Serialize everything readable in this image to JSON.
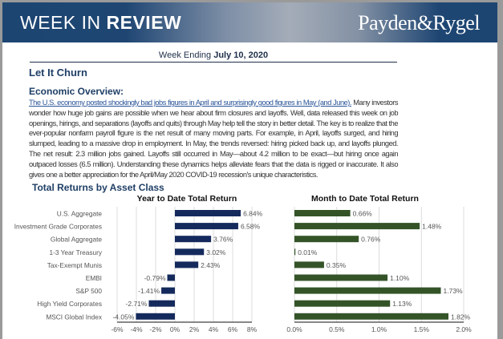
{
  "header": {
    "title_light": "WEEK IN ",
    "title_bold": "REVIEW",
    "logo": "Payden&Rygel"
  },
  "week": {
    "label": "Week Ending ",
    "date": "July 10, 2020"
  },
  "headline": "Let It Churn",
  "overview": {
    "title": "Economic Overview:",
    "link": "The U.S. economy posted shockingly bad jobs figures in April and surprisingly good figures in May (and June).",
    "text": " Many investors wonder how huge job gains are possible when we hear about firm closures and layoffs. Well, data released this week on job openings, hirings, and separations (layoffs and quits) through May help tell the story in better detail. The key is to realize that the ever-popular nonfarm payroll figure is the net result of many moving parts. For example, in April, layoffs surged, and hiring slumped, leading to a massive drop in employment. In May, the trends reversed:  hiring picked back up, and layoffs plunged. The net result: 2.3 million jobs gained. Layoffs still occurred in May—about 4.2 million to be exact—but hiring once again outpaced losses (6.5 million). Understanding these dynamics helps alleviate fears that the data is rigged or inaccurate. It also gives one a better appreciation for the April/May 2020 COVID-19 recession's unique characteristics."
  },
  "section_title": "Total Returns by Asset Class",
  "chart_data": [
    {
      "type": "bar",
      "orientation": "horizontal",
      "title": "Year to Date Total Return",
      "categories": [
        "U.S. Aggregate",
        "Investment Grade Corporates",
        "Global Aggregate",
        "1-3 Year Treasury",
        "Tax-Exempt Munis",
        "EMBI",
        "S&P 500",
        "High Yield Corporates",
        "MSCI Global Index"
      ],
      "values": [
        6.84,
        6.58,
        3.76,
        3.02,
        2.43,
        -0.79,
        -1.41,
        -2.71,
        -4.05
      ],
      "labels": [
        "6.84%",
        "6.58%",
        "3.76%",
        "3.02%",
        "2.43%",
        "-0.79%",
        "-1.41%",
        "-2.71%",
        "-4.05%"
      ],
      "xlim": [
        -6,
        8
      ],
      "ticks": [
        -6,
        -4,
        -2,
        0,
        2,
        4,
        6,
        8
      ],
      "tick_labels": [
        "-6%",
        "-4%",
        "-2%",
        "0%",
        "2%",
        "4%",
        "6%",
        "8%"
      ],
      "color": "#152a5c",
      "grid": true
    },
    {
      "type": "bar",
      "orientation": "horizontal",
      "title": "Month to Date Total Return",
      "values": [
        0.66,
        1.48,
        0.76,
        0.01,
        0.35,
        1.1,
        1.73,
        1.13,
        1.82
      ],
      "labels": [
        "0.66%",
        "1.48%",
        "0.76%",
        "0.01%",
        "0.35%",
        "1.10%",
        "1.73%",
        "1.13%",
        "1.82%"
      ],
      "xlim": [
        0,
        2
      ],
      "ticks": [
        0,
        0.5,
        1,
        1.5,
        2
      ],
      "tick_labels": [
        "0.0%",
        "0.5%",
        "1.0%",
        "1.5%",
        "2.0%"
      ],
      "color": "#345428",
      "grid": true
    }
  ]
}
